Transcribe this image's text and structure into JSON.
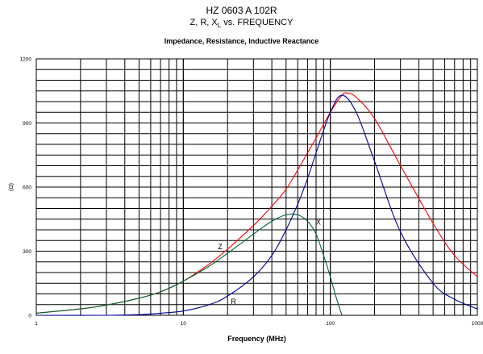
{
  "header": {
    "title": "HZ 0603 A 102R",
    "subtitle_main": "Z, R, X",
    "subtitle_sub": "L",
    "subtitle_tail": " vs. FREQUENCY",
    "chart_title": "Impedance, Resistance, Inductive Reactance"
  },
  "chart_data": {
    "type": "line",
    "title": "Impedance, Resistance, Inductive Reactance",
    "xlabel": "Frequency (MHz)",
    "ylabel": "(Ω)",
    "xscale": "log",
    "xlim": [
      1,
      1000
    ],
    "ylim": [
      0,
      1200
    ],
    "x_ticks": [
      "1",
      "10",
      "100",
      "1000"
    ],
    "y_ticks": [
      "0",
      "300",
      "600",
      "900",
      "1200"
    ],
    "grid": true,
    "series": [
      {
        "name": "Z",
        "color": "#ff0000",
        "x": [
          1,
          2,
          3,
          5,
          7,
          10,
          15,
          20,
          30,
          40,
          50,
          60,
          70,
          80,
          100,
          120,
          130,
          150,
          200,
          300,
          500,
          700,
          1000
        ],
        "y": [
          10,
          30,
          48,
          80,
          110,
          160,
          240,
          310,
          420,
          510,
          590,
          680,
          760,
          830,
          950,
          1030,
          1040,
          1020,
          920,
          700,
          430,
          280,
          180
        ]
      },
      {
        "name": "X",
        "color": "#006633",
        "x": [
          1,
          2,
          3,
          5,
          7,
          10,
          15,
          20,
          30,
          40,
          50,
          60,
          70,
          80,
          90,
          100,
          110,
          120
        ],
        "y": [
          10,
          30,
          48,
          80,
          110,
          160,
          230,
          290,
          380,
          440,
          470,
          470,
          440,
          380,
          280,
          180,
          80,
          0
        ]
      },
      {
        "name": "R",
        "color": "#000099",
        "x": [
          1,
          3,
          5,
          7,
          10,
          15,
          20,
          30,
          40,
          50,
          60,
          70,
          80,
          100,
          120,
          150,
          200,
          300,
          500,
          700,
          1000
        ],
        "y": [
          0,
          0,
          3,
          10,
          20,
          50,
          90,
          180,
          280,
          400,
          520,
          640,
          760,
          950,
          1030,
          950,
          720,
          390,
          150,
          75,
          30
        ]
      }
    ]
  }
}
